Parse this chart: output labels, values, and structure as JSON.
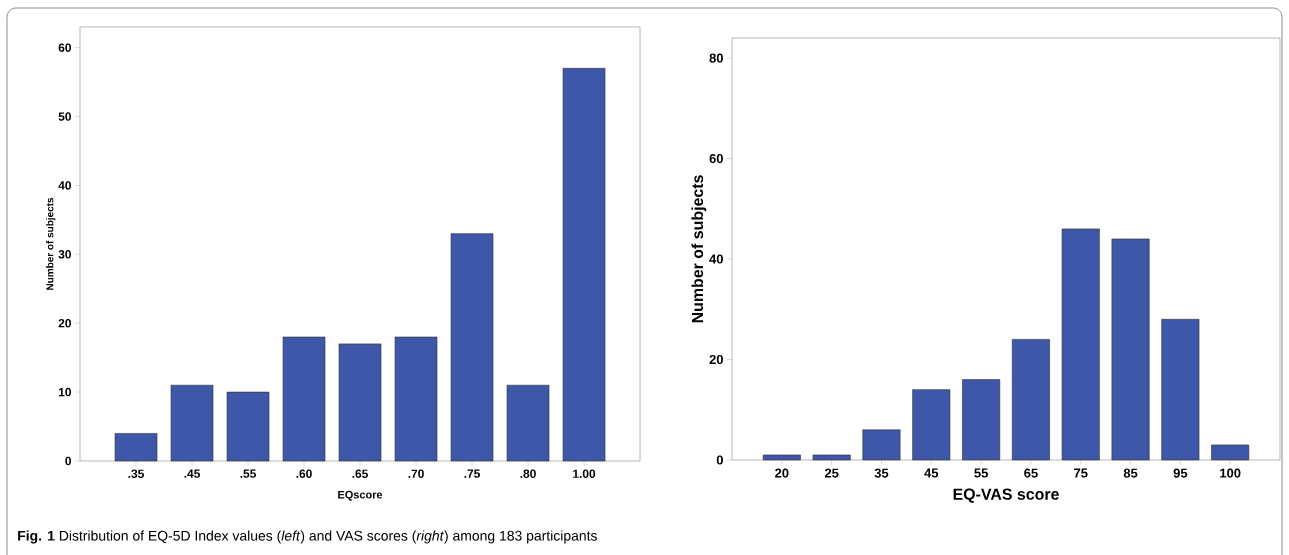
{
  "chart_data": [
    {
      "type": "bar",
      "xlabel": "EQscore",
      "ylabel": "Number of subjects",
      "categories": [
        ".35",
        ".45",
        ".55",
        ".60",
        ".65",
        ".70",
        ".75",
        ".80",
        "1.00"
      ],
      "values": [
        4,
        11,
        10,
        18,
        17,
        18,
        33,
        11,
        57
      ],
      "color": "#3f57a9",
      "ylim": [
        0,
        63
      ],
      "yticks": [
        0,
        10,
        20,
        30,
        40,
        50,
        60
      ],
      "grid": false,
      "annotations": [
        "**Fig. 1**  Distribution of EQ-5D Index values (*left*) and VAS scores (*right*) among 183 participants"
      ]
    },
    {
      "type": "bar",
      "xlabel": "EQ-VAS score",
      "ylabel": "Number of subjects",
      "categories": [
        "20",
        "25",
        "35",
        "45",
        "55",
        "65",
        "75",
        "85",
        "95",
        "100"
      ],
      "values": [
        1,
        1,
        6,
        14,
        16,
        24,
        46,
        44,
        28,
        3
      ],
      "color": "#3f57a9",
      "ylim": [
        0,
        84
      ],
      "yticks": [
        0,
        20,
        40,
        60,
        80
      ],
      "grid": false
    }
  ]
}
